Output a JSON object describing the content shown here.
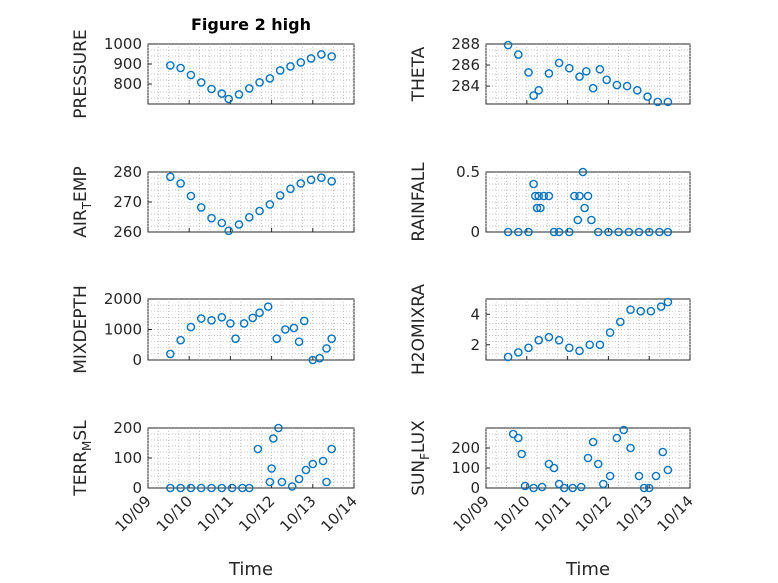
{
  "figure": {
    "title": "Figure 2 high"
  },
  "chart_data": [
    {
      "type": "scatter",
      "title": "Figure 2 high",
      "ylabel": "PRESSURE",
      "ylabel_sub": "",
      "ylim": [
        700,
        1000
      ],
      "yticks": [
        800,
        900,
        1000
      ],
      "xticks_visible": false,
      "xlabel": "",
      "x": [
        "2019-10-09 13:00",
        "2019-10-09 19:00",
        "2019-10-10 01:00",
        "2019-10-10 07:00",
        "2019-10-10 13:00",
        "2019-10-10 19:00",
        "2019-10-10 23:00",
        "2019-10-11 05:00",
        "2019-10-11 11:00",
        "2019-10-11 17:00",
        "2019-10-11 23:00",
        "2019-10-12 05:00",
        "2019-10-12 11:00",
        "2019-10-12 17:00",
        "2019-10-12 23:00",
        "2019-10-13 05:00",
        "2019-10-13 11:00"
      ],
      "y": [
        893,
        880,
        845,
        808,
        775,
        752,
        725,
        748,
        778,
        808,
        828,
        868,
        888,
        908,
        928,
        948,
        938
      ],
      "color": "#0072bd"
    },
    {
      "type": "scatter",
      "title": "",
      "ylabel": "THETA",
      "ylabel_sub": "",
      "ylim": [
        282.3,
        288
      ],
      "yticks": [
        284,
        286,
        288
      ],
      "xticks_visible": false,
      "xlabel": "",
      "x": [
        "2019-10-09 13:00",
        "2019-10-09 19:00",
        "2019-10-10 01:00",
        "2019-10-10 04:00",
        "2019-10-10 07:00",
        "2019-10-10 13:00",
        "2019-10-10 19:00",
        "2019-10-11 01:00",
        "2019-10-11 07:00",
        "2019-10-11 11:00",
        "2019-10-11 15:00",
        "2019-10-11 19:00",
        "2019-10-11 23:00",
        "2019-10-12 05:00",
        "2019-10-12 11:00",
        "2019-10-12 17:00",
        "2019-10-12 23:00",
        "2019-10-13 05:00",
        "2019-10-13 11:00"
      ],
      "y": [
        287.9,
        287.0,
        285.3,
        283.1,
        283.6,
        285.2,
        286.2,
        285.7,
        284.9,
        285.4,
        283.8,
        285.6,
        284.6,
        284.1,
        284.0,
        283.6,
        283.0,
        282.5,
        282.5
      ],
      "color": "#0072bd"
    },
    {
      "type": "scatter",
      "title": "",
      "ylabel": "AIR",
      "ylabel_sub": "T",
      "ylabel_suffix": "EMP",
      "ylim": [
        260,
        280
      ],
      "yticks": [
        260,
        270,
        280
      ],
      "xticks_visible": false,
      "xlabel": "",
      "x": [
        "2019-10-09 13:00",
        "2019-10-09 19:00",
        "2019-10-10 01:00",
        "2019-10-10 07:00",
        "2019-10-10 13:00",
        "2019-10-10 19:00",
        "2019-10-10 23:00",
        "2019-10-11 05:00",
        "2019-10-11 11:00",
        "2019-10-11 17:00",
        "2019-10-11 23:00",
        "2019-10-12 05:00",
        "2019-10-12 11:00",
        "2019-10-12 17:00",
        "2019-10-12 23:00",
        "2019-10-13 05:00",
        "2019-10-13 11:00"
      ],
      "y": [
        278.4,
        276.2,
        272.0,
        268.2,
        264.6,
        263.0,
        260.4,
        262.5,
        264.9,
        267.0,
        269.2,
        272.2,
        274.4,
        276.2,
        277.4,
        278.1,
        276.9
      ],
      "color": "#0072bd"
    },
    {
      "type": "scatter",
      "title": "",
      "ylabel": "RAINFALL",
      "ylabel_sub": "",
      "ylim": [
        0,
        0.5
      ],
      "yticks": [
        0,
        0.5
      ],
      "xticks_visible": false,
      "xlabel": "",
      "x": [
        "2019-10-09 13:00",
        "2019-10-09 19:00",
        "2019-10-10 01:00",
        "2019-10-10 04:00",
        "2019-10-10 05:00",
        "2019-10-10 06:00",
        "2019-10-10 07:00",
        "2019-10-10 08:00",
        "2019-10-10 10:00",
        "2019-10-10 13:00",
        "2019-10-10 16:00",
        "2019-10-10 19:00",
        "2019-10-11 01:00",
        "2019-10-11 04:00",
        "2019-10-11 06:00",
        "2019-10-11 07:00",
        "2019-10-11 09:00",
        "2019-10-11 10:00",
        "2019-10-11 12:00",
        "2019-10-11 14:00",
        "2019-10-11 18:00",
        "2019-10-12 00:00",
        "2019-10-12 06:00",
        "2019-10-12 12:00",
        "2019-10-12 18:00",
        "2019-10-13 00:00",
        "2019-10-13 06:00",
        "2019-10-13 11:00"
      ],
      "y": [
        0,
        0,
        0,
        0.4,
        0.3,
        0.2,
        0.3,
        0.2,
        0.3,
        0.3,
        0,
        0,
        0,
        0.3,
        0.1,
        0.3,
        0.5,
        0.2,
        0.3,
        0.1,
        0,
        0,
        0,
        0,
        0,
        0,
        0,
        0
      ],
      "color": "#0072bd"
    },
    {
      "type": "scatter",
      "title": "",
      "ylabel": "MIXDEPTH",
      "ylabel_sub": "",
      "ylim": [
        0,
        2000
      ],
      "yticks": [
        0,
        1000,
        2000
      ],
      "xticks_visible": false,
      "xlabel": "",
      "x": [
        "2019-10-09 13:00",
        "2019-10-09 19:00",
        "2019-10-10 01:00",
        "2019-10-10 07:00",
        "2019-10-10 13:00",
        "2019-10-10 19:00",
        "2019-10-11 00:00",
        "2019-10-11 03:00",
        "2019-10-11 08:00",
        "2019-10-11 13:00",
        "2019-10-11 17:00",
        "2019-10-11 22:00",
        "2019-10-12 03:00",
        "2019-10-12 08:00",
        "2019-10-12 13:00",
        "2019-10-12 16:00",
        "2019-10-12 19:00",
        "2019-10-13 00:00",
        "2019-10-13 04:00",
        "2019-10-13 08:00",
        "2019-10-13 11:00"
      ],
      "y": [
        200,
        650,
        1080,
        1360,
        1300,
        1400,
        1200,
        700,
        1200,
        1380,
        1550,
        1750,
        700,
        1000,
        1050,
        600,
        1280,
        0,
        60,
        380,
        700
      ],
      "color": "#0072bd"
    },
    {
      "type": "scatter",
      "title": "",
      "ylabel": "H2OMIXRA",
      "ylabel_sub": "",
      "ylim": [
        1,
        5
      ],
      "yticks": [
        2,
        4
      ],
      "xticks_visible": false,
      "xlabel": "",
      "x": [
        "2019-10-09 13:00",
        "2019-10-09 19:00",
        "2019-10-10 01:00",
        "2019-10-10 07:00",
        "2019-10-10 13:00",
        "2019-10-10 19:00",
        "2019-10-11 01:00",
        "2019-10-11 07:00",
        "2019-10-11 13:00",
        "2019-10-11 19:00",
        "2019-10-12 01:00",
        "2019-10-12 07:00",
        "2019-10-12 13:00",
        "2019-10-12 19:00",
        "2019-10-13 01:00",
        "2019-10-13 07:00",
        "2019-10-13 11:00"
      ],
      "y": [
        1.2,
        1.5,
        1.8,
        2.3,
        2.5,
        2.3,
        1.8,
        1.6,
        2.0,
        2.0,
        2.8,
        3.5,
        4.3,
        4.2,
        4.2,
        4.5,
        4.8
      ],
      "color": "#0072bd"
    },
    {
      "type": "scatter",
      "title": "",
      "ylabel": "TERR",
      "ylabel_sub": "M",
      "ylabel_suffix": "SL",
      "ylim": [
        0,
        200
      ],
      "yticks": [
        0,
        100,
        200
      ],
      "xticks_visible": true,
      "xlabel": "Time",
      "xticklabels": [
        "10/09",
        "10/10",
        "10/11",
        "10/12",
        "10/13",
        "10/14"
      ],
      "x": [
        "2019-10-09 13:00",
        "2019-10-09 19:00",
        "2019-10-10 01:00",
        "2019-10-10 07:00",
        "2019-10-10 13:00",
        "2019-10-10 19:00",
        "2019-10-11 01:00",
        "2019-10-11 07:00",
        "2019-10-11 11:00",
        "2019-10-11 16:00",
        "2019-10-11 23:00",
        "2019-10-12 00:00",
        "2019-10-12 01:00",
        "2019-10-12 04:00",
        "2019-10-12 06:00",
        "2019-10-12 12:00",
        "2019-10-12 16:00",
        "2019-10-12 20:00",
        "2019-10-13 00:00",
        "2019-10-13 06:00",
        "2019-10-13 08:00",
        "2019-10-13 11:00"
      ],
      "y": [
        0,
        0,
        0,
        0,
        0,
        0,
        0,
        0,
        0,
        130,
        20,
        65,
        165,
        200,
        20,
        5,
        30,
        60,
        80,
        90,
        20,
        130
      ],
      "color": "#0072bd"
    },
    {
      "type": "scatter",
      "title": "",
      "ylabel": "SUN",
      "ylabel_sub": "F",
      "ylabel_suffix": "LUX",
      "ylim": [
        0,
        300
      ],
      "yticks": [
        0,
        100,
        200
      ],
      "xticks_visible": true,
      "xlabel": "Time",
      "xticklabels": [
        "10/09",
        "10/10",
        "10/11",
        "10/12",
        "10/13",
        "10/14"
      ],
      "x": [
        "2019-10-09 16:00",
        "2019-10-09 19:00",
        "2019-10-09 21:00",
        "2019-10-09 23:00",
        "2019-10-10 04:00",
        "2019-10-10 09:00",
        "2019-10-10 13:00",
        "2019-10-10 16:00",
        "2019-10-10 19:00",
        "2019-10-10 22:00",
        "2019-10-11 03:00",
        "2019-10-11 08:00",
        "2019-10-11 12:00",
        "2019-10-11 15:00",
        "2019-10-11 18:00",
        "2019-10-11 21:00",
        "2019-10-12 01:00",
        "2019-10-12 05:00",
        "2019-10-12 09:00",
        "2019-10-12 13:00",
        "2019-10-12 18:00",
        "2019-10-12 21:00",
        "2019-10-13 00:00",
        "2019-10-13 04:00",
        "2019-10-13 08:00",
        "2019-10-13 11:00"
      ],
      "y": [
        270,
        250,
        170,
        10,
        0,
        5,
        120,
        100,
        20,
        0,
        0,
        5,
        150,
        230,
        120,
        20,
        60,
        250,
        290,
        200,
        60,
        0,
        0,
        60,
        180,
        90
      ],
      "color": "#0072bd"
    }
  ]
}
